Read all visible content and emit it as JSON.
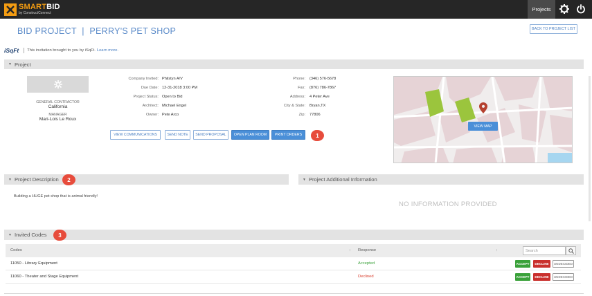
{
  "brand": {
    "title_smart": "SMART",
    "title_bid": "BID",
    "subtitle": "by ConstructConnect"
  },
  "topnav": {
    "projects_label": "Projects"
  },
  "header": {
    "title": "BID PROJECT  |  PERRY'S PET SHOP",
    "back_label": "BACK TO PROJECT LIST"
  },
  "invitation": {
    "logo": "iSqFt",
    "text": "This invitation brought to you by iSqFt.",
    "link": "Learn more."
  },
  "project": {
    "section_label": "Project",
    "gc_label": "GENERAL CONTRACTOR",
    "gc_value": "California",
    "manager_label": "MANAGER",
    "manager_value": "Mari-Lois Le Roux",
    "company_invited_label": "Company Invited:",
    "company_invited": "Philstyn A/V",
    "due_date_label": "Due Date:",
    "due_date": "12-31-2018 3:00 PM",
    "status_label": "Project Status:",
    "status": "Open to Bid",
    "architect_label": "Architect:",
    "architect": "Michael Engel",
    "owner_label": "Owner:",
    "owner": "Pete Arco",
    "phone_label": "Phone:",
    "phone": "(346) 576-5678",
    "fax_label": "Fax:",
    "fax": "(876) 786-7867",
    "address_label": "Address:",
    "address": "4 Peter Ave",
    "citystate_label": "City & State:",
    "citystate": "Bryan,TX",
    "zip_label": "Zip:",
    "zip": "77806",
    "buttons": {
      "view_communications": "VIEW COMMUNICATIONS",
      "send_note": "SEND NOTE",
      "send_proposal": "SEND PROPOSAL",
      "open_plan_room": "OPEN PLAN ROOM",
      "print_orders": "PRINT ORDERS"
    },
    "view_map": "VIEW MAP"
  },
  "badges": {
    "b1": "1",
    "b2": "2",
    "b3": "3"
  },
  "description": {
    "section_label": "Project Description",
    "text": "Building a HUGE pet shop that is animal friendly!"
  },
  "additional": {
    "section_label": "Project Additional Information",
    "empty": "NO INFORMATION PROVIDED"
  },
  "codes": {
    "section_label": "Invited Codes",
    "col_codes": "Codes",
    "col_response": "Response",
    "sort_indicator": "↕",
    "search_placeholder": "Search",
    "rows": [
      {
        "code": "11050 - Library Equipment",
        "response": "Accepted"
      },
      {
        "code": "11060 - Theater and Stage Equipment",
        "response": "Declined"
      }
    ],
    "accept": "ACCEPT",
    "decline": "DECLINE",
    "undecided": "UNDECIDED"
  },
  "colors": {
    "topbar": "#262626",
    "accent": "#4a8fd8",
    "badge": "#e74c3c",
    "accept": "#3aa13a",
    "decline": "#c9302c"
  },
  "icons": [
    "gear-icon",
    "power-icon",
    "search-icon",
    "map-pin-icon"
  ]
}
